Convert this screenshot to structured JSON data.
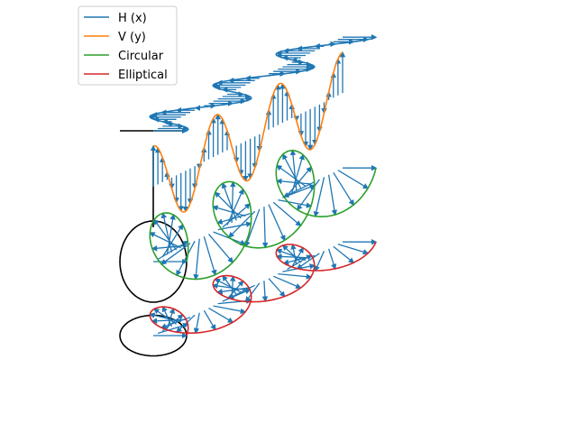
{
  "chart_data": {
    "type": "line",
    "title": "",
    "xlabel": "",
    "ylabel": "",
    "grid": false,
    "axes_visible": false,
    "legend_placement": "upper-left",
    "wave": {
      "amplitude": 1.0,
      "wavelength_units": 2,
      "wavelengths_shown": 3,
      "direction": "propagation along z into the page"
    },
    "series": [
      {
        "name": "H (x)",
        "color": "#1f77b4",
        "polarization": "horizontal",
        "ex": 1.0,
        "ey": 0.0,
        "phase_deg": 0
      },
      {
        "name": "V (y)",
        "color": "#ff7f0e",
        "polarization": "vertical",
        "ex": 0.0,
        "ey": 1.0,
        "phase_deg": 0
      },
      {
        "name": "Circular",
        "color": "#2ca02c",
        "polarization": "circular",
        "ex": 1.0,
        "ey": 1.0,
        "phase_deg": 90
      },
      {
        "name": "Elliptical",
        "color": "#d62728",
        "polarization": "elliptical",
        "ex": 1.0,
        "ey": 0.5,
        "phase_deg": 90
      }
    ],
    "arrow_color": "#1f77b4",
    "reference_color": "#000000"
  }
}
